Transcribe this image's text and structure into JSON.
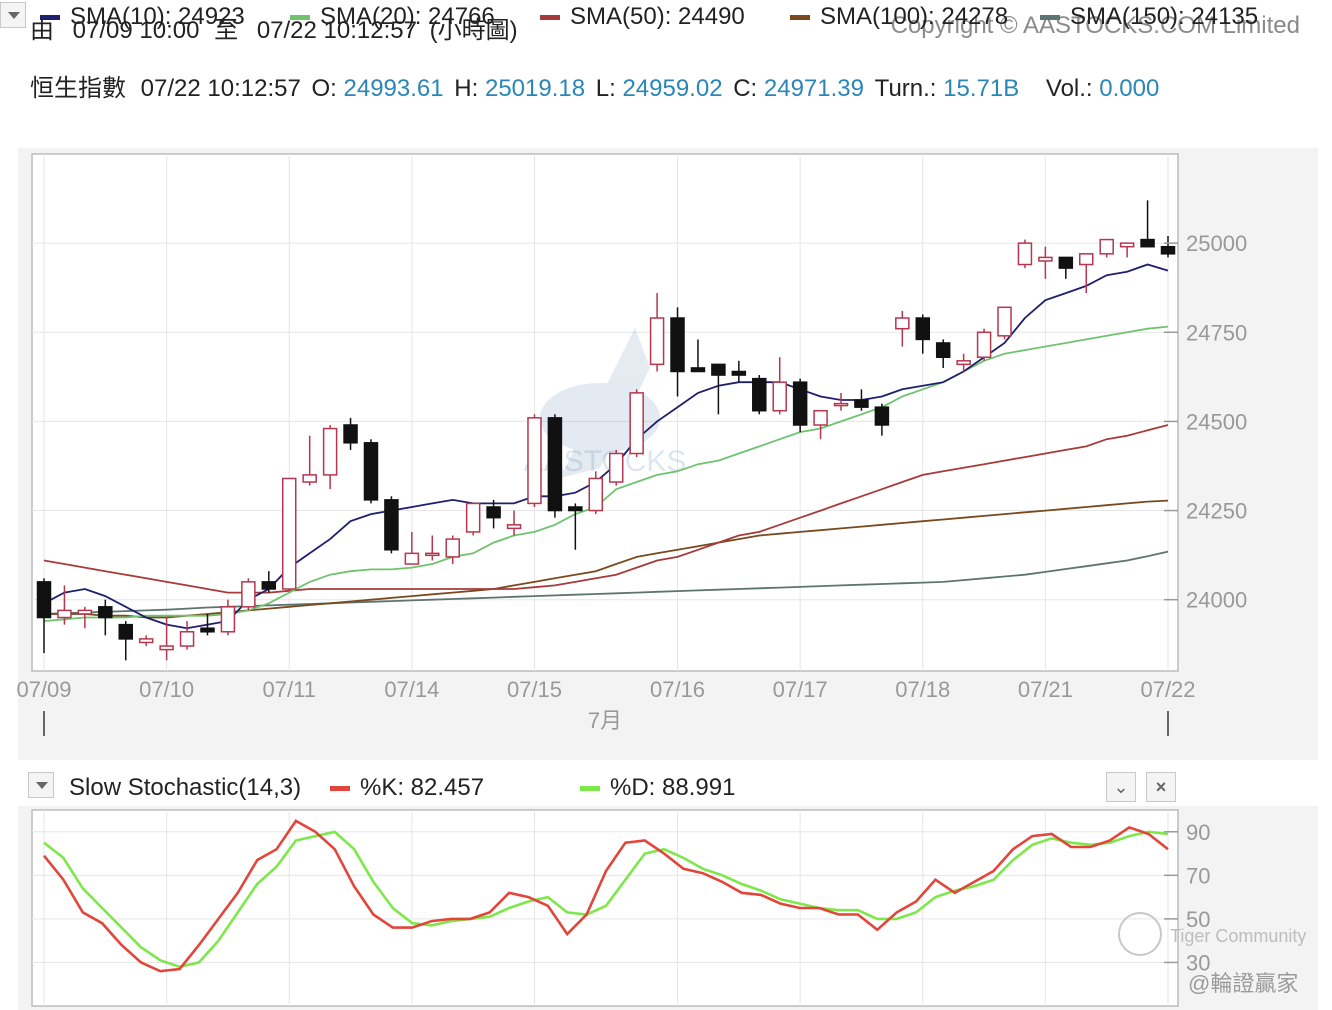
{
  "header": {
    "from_label": "由",
    "from_time": "07/09 10:00",
    "to_label": "至",
    "to_time": "07/22 10:12:57",
    "chart_kind": "(小時圖)",
    "copyright": "Copyright © AASTOCKS.COM Limited"
  },
  "quote": {
    "name": "恒生指數",
    "time": "07/22 10:12:57",
    "o_label": "O:",
    "o": "24993.61",
    "h_label": "H:",
    "h": "25019.18",
    "l_label": "L:",
    "l": "24959.02",
    "c_label": "C:",
    "c": "24971.39",
    "turn_label": "Turn.:",
    "turn": "15.71B",
    "vol_label": "Vol.:",
    "vol": "0.000"
  },
  "sma_legend": [
    {
      "label": "SMA(10): 24923",
      "color": "#1f1f6e"
    },
    {
      "label": "SMA(20): 24766",
      "color": "#6fc36f"
    },
    {
      "label": "SMA(50): 24490",
      "color": "#a83a3a"
    },
    {
      "label": "SMA(100): 24278",
      "color": "#7a4a1e"
    },
    {
      "label": "SMA(150): 24135",
      "color": "#5e7470"
    }
  ],
  "stoch_legend": {
    "title": "Slow Stochastic(14,3)",
    "k_label": "%K: 82.457",
    "k_color": "#e2463b",
    "d_label": "%D: 88.991",
    "d_color": "#7de84a"
  },
  "watermarks": {
    "center": "AASTOCKS",
    "community": "Tiger Community",
    "author": "@輪證贏家"
  },
  "colors": {
    "up": "#b5364e",
    "down": "#111111",
    "value_text": "#2a86b8",
    "axis_text": "#999999"
  },
  "chart_data": {
    "type": "candlestick",
    "x_ticks": [
      "07/09",
      "07/10",
      "07/11",
      "07/14",
      "07/15",
      "07/16",
      "07/17",
      "07/18",
      "07/21",
      "07/22"
    ],
    "x_month_label": "7月",
    "y_ticks": [
      25000,
      24750,
      24500,
      24250,
      24000
    ],
    "ylim": [
      23800,
      25250
    ],
    "candles": [
      {
        "o": 24050,
        "h": 24060,
        "l": 23850,
        "c": 23950
      },
      {
        "o": 23950,
        "h": 24040,
        "l": 23930,
        "c": 23970
      },
      {
        "o": 23960,
        "h": 23980,
        "l": 23920,
        "c": 23970
      },
      {
        "o": 23980,
        "h": 24000,
        "l": 23900,
        "c": 23950
      },
      {
        "o": 23930,
        "h": 23940,
        "l": 23830,
        "c": 23890
      },
      {
        "o": 23880,
        "h": 23900,
        "l": 23870,
        "c": 23890
      },
      {
        "o": 23860,
        "h": 23950,
        "l": 23830,
        "c": 23870
      },
      {
        "o": 23870,
        "h": 23940,
        "l": 23860,
        "c": 23910
      },
      {
        "o": 23920,
        "h": 23960,
        "l": 23900,
        "c": 23910
      },
      {
        "o": 23910,
        "h": 24000,
        "l": 23900,
        "c": 23980
      },
      {
        "o": 23980,
        "h": 24060,
        "l": 23970,
        "c": 24050
      },
      {
        "o": 24050,
        "h": 24080,
        "l": 24020,
        "c": 24030
      },
      {
        "o": 24030,
        "h": 24340,
        "l": 24025,
        "c": 24340
      },
      {
        "o": 24330,
        "h": 24460,
        "l": 24320,
        "c": 24350
      },
      {
        "o": 24350,
        "h": 24490,
        "l": 24310,
        "c": 24480
      },
      {
        "o": 24490,
        "h": 24510,
        "l": 24420,
        "c": 24440
      },
      {
        "o": 24440,
        "h": 24450,
        "l": 24270,
        "c": 24280
      },
      {
        "o": 24280,
        "h": 24290,
        "l": 24130,
        "c": 24140
      },
      {
        "o": 24100,
        "h": 24190,
        "l": 24100,
        "c": 24130
      },
      {
        "o": 24130,
        "h": 24180,
        "l": 24110,
        "c": 24130
      },
      {
        "o": 24120,
        "h": 24180,
        "l": 24100,
        "c": 24170
      },
      {
        "o": 24190,
        "h": 24270,
        "l": 24180,
        "c": 24270
      },
      {
        "o": 24260,
        "h": 24280,
        "l": 24200,
        "c": 24230
      },
      {
        "o": 24200,
        "h": 24250,
        "l": 24180,
        "c": 24210
      },
      {
        "o": 24270,
        "h": 24520,
        "l": 24260,
        "c": 24510
      },
      {
        "o": 24510,
        "h": 24520,
        "l": 24230,
        "c": 24250
      },
      {
        "o": 24260,
        "h": 24270,
        "l": 24140,
        "c": 24250
      },
      {
        "o": 24250,
        "h": 24360,
        "l": 24240,
        "c": 24340
      },
      {
        "o": 24330,
        "h": 24420,
        "l": 24320,
        "c": 24410
      },
      {
        "o": 24410,
        "h": 24590,
        "l": 24400,
        "c": 24580
      },
      {
        "o": 24660,
        "h": 24860,
        "l": 24640,
        "c": 24790
      },
      {
        "o": 24790,
        "h": 24820,
        "l": 24570,
        "c": 24640
      },
      {
        "o": 24650,
        "h": 24730,
        "l": 24640,
        "c": 24640
      },
      {
        "o": 24660,
        "h": 24650,
        "l": 24520,
        "c": 24630
      },
      {
        "o": 24640,
        "h": 24670,
        "l": 24610,
        "c": 24630
      },
      {
        "o": 24620,
        "h": 24630,
        "l": 24520,
        "c": 24530
      },
      {
        "o": 24530,
        "h": 24680,
        "l": 24520,
        "c": 24610
      },
      {
        "o": 24610,
        "h": 24620,
        "l": 24470,
        "c": 24490
      },
      {
        "o": 24490,
        "h": 24530,
        "l": 24450,
        "c": 24530
      },
      {
        "o": 24550,
        "h": 24580,
        "l": 24530,
        "c": 24550
      },
      {
        "o": 24560,
        "h": 24590,
        "l": 24530,
        "c": 24540
      },
      {
        "o": 24540,
        "h": 24550,
        "l": 24460,
        "c": 24490
      },
      {
        "o": 24760,
        "h": 24810,
        "l": 24710,
        "c": 24790
      },
      {
        "o": 24790,
        "h": 24800,
        "l": 24690,
        "c": 24730
      },
      {
        "o": 24720,
        "h": 24730,
        "l": 24650,
        "c": 24680
      },
      {
        "o": 24660,
        "h": 24690,
        "l": 24640,
        "c": 24670
      },
      {
        "o": 24680,
        "h": 24760,
        "l": 24670,
        "c": 24750
      },
      {
        "o": 24740,
        "h": 24820,
        "l": 24730,
        "c": 24820
      },
      {
        "o": 24940,
        "h": 25010,
        "l": 24930,
        "c": 25000
      },
      {
        "o": 24950,
        "h": 24990,
        "l": 24900,
        "c": 24960
      },
      {
        "o": 24960,
        "h": 24960,
        "l": 24900,
        "c": 24930
      },
      {
        "o": 24940,
        "h": 24970,
        "l": 24860,
        "c": 24970
      },
      {
        "o": 24970,
        "h": 25000,
        "l": 24960,
        "c": 25010
      },
      {
        "o": 24990,
        "h": 25000,
        "l": 24960,
        "c": 25000
      },
      {
        "o": 25010,
        "h": 25120,
        "l": 24990,
        "c": 24990
      },
      {
        "o": 24990,
        "h": 25020,
        "l": 24960,
        "c": 24970
      }
    ],
    "series": [
      {
        "name": "SMA(10)",
        "color": "#1f1f6e",
        "values": [
          23990,
          24020,
          24030,
          24010,
          23980,
          23950,
          23930,
          23920,
          23930,
          23940,
          24000,
          24030,
          24090,
          24130,
          24170,
          24220,
          24240,
          24250,
          24260,
          24270,
          24280,
          24270,
          24270,
          24270,
          24290,
          24290,
          24300,
          24330,
          24380,
          24450,
          24500,
          24540,
          24580,
          24600,
          24610,
          24610,
          24610,
          24590,
          24570,
          24560,
          24560,
          24570,
          24590,
          24600,
          24610,
          24640,
          24680,
          24720,
          24790,
          24840,
          24860,
          24880,
          24910,
          24920,
          24940,
          24923
        ]
      },
      {
        "name": "SMA(20)",
        "color": "#6fc36f",
        "values": [
          23940,
          23945,
          23950,
          23950,
          23950,
          23955,
          23955,
          23955,
          23955,
          23960,
          23970,
          23990,
          24020,
          24050,
          24070,
          24080,
          24085,
          24085,
          24090,
          24100,
          24120,
          24130,
          24160,
          24180,
          24190,
          24210,
          24240,
          24260,
          24310,
          24330,
          24350,
          24360,
          24380,
          24390,
          24410,
          24430,
          24450,
          24470,
          24480,
          24500,
          24520,
          24540,
          24570,
          24590,
          24610,
          24640,
          24670,
          24690,
          24700,
          24710,
          24720,
          24730,
          24740,
          24750,
          24760,
          24766
        ]
      },
      {
        "name": "SMA(50)",
        "color": "#a83a3a",
        "values": [
          24110,
          24100,
          24090,
          24080,
          24070,
          24060,
          24050,
          24040,
          24030,
          24020,
          24020,
          24020,
          24025,
          24030,
          24030,
          24030,
          24030,
          24030,
          24030,
          24030,
          24030,
          24030,
          24030,
          24030,
          24035,
          24040,
          24050,
          24060,
          24070,
          24090,
          24110,
          24120,
          24140,
          24160,
          24180,
          24190,
          24210,
          24230,
          24250,
          24270,
          24290,
          24310,
          24330,
          24350,
          24360,
          24370,
          24380,
          24390,
          24400,
          24410,
          24420,
          24430,
          24450,
          24460,
          24475,
          24490
        ]
      },
      {
        "name": "SMA(100)",
        "color": "#7a4a1e",
        "values": [
          23960,
          23960,
          23960,
          23955,
          23955,
          23950,
          23950,
          23955,
          23960,
          23965,
          23970,
          23975,
          23980,
          23985,
          23990,
          23995,
          24000,
          24005,
          24010,
          24015,
          24020,
          24025,
          24030,
          24040,
          24050,
          24060,
          24070,
          24080,
          24100,
          24120,
          24130,
          24140,
          24150,
          24160,
          24170,
          24180,
          24185,
          24190,
          24195,
          24200,
          24205,
          24210,
          24215,
          24220,
          24225,
          24230,
          24235,
          24240,
          24245,
          24250,
          24255,
          24260,
          24265,
          24270,
          24275,
          24278
        ]
      },
      {
        "name": "SMA(150)",
        "color": "#5e7470",
        "values": [
          23960,
          23962,
          23964,
          23966,
          23968,
          23970,
          23972,
          23975,
          23978,
          23980,
          23982,
          23984,
          23986,
          23988,
          23990,
          23992,
          23994,
          23996,
          23998,
          24000,
          24002,
          24004,
          24006,
          24008,
          24010,
          24012,
          24014,
          24016,
          24018,
          24020,
          24022,
          24024,
          24026,
          24028,
          24030,
          24032,
          24034,
          24036,
          24038,
          24040,
          24042,
          24044,
          24046,
          24048,
          24050,
          24055,
          24060,
          24065,
          24070,
          24078,
          24086,
          24094,
          24102,
          24110,
          24122,
          24135
        ]
      }
    ],
    "stochastic": {
      "ylim": [
        10,
        100
      ],
      "y_ticks": [
        90,
        70,
        50,
        30
      ],
      "k": [
        79,
        68,
        53,
        48,
        38,
        30,
        26,
        27,
        38,
        50,
        62,
        77,
        82,
        95,
        90,
        82,
        65,
        52,
        46,
        46,
        49,
        50,
        50,
        53,
        62,
        60,
        56,
        43,
        52,
        72,
        85,
        86,
        80,
        73,
        71,
        67,
        62,
        61,
        57,
        55,
        55,
        52,
        52,
        45,
        53,
        58,
        68,
        62,
        67,
        72,
        82,
        88,
        89,
        83,
        83,
        86,
        92,
        89,
        82
      ],
      "d": [
        85,
        78,
        64,
        55,
        46,
        37,
        31,
        28,
        30,
        40,
        53,
        66,
        74,
        86,
        88,
        90,
        82,
        67,
        55,
        48,
        47,
        49,
        50,
        51,
        55,
        58,
        60,
        53,
        52,
        56,
        68,
        80,
        82,
        78,
        73,
        70,
        66,
        63,
        59,
        57,
        55,
        54,
        54,
        50,
        50,
        53,
        60,
        63,
        65,
        68,
        77,
        84,
        87,
        85,
        84,
        85,
        88,
        90,
        89
      ]
    }
  }
}
